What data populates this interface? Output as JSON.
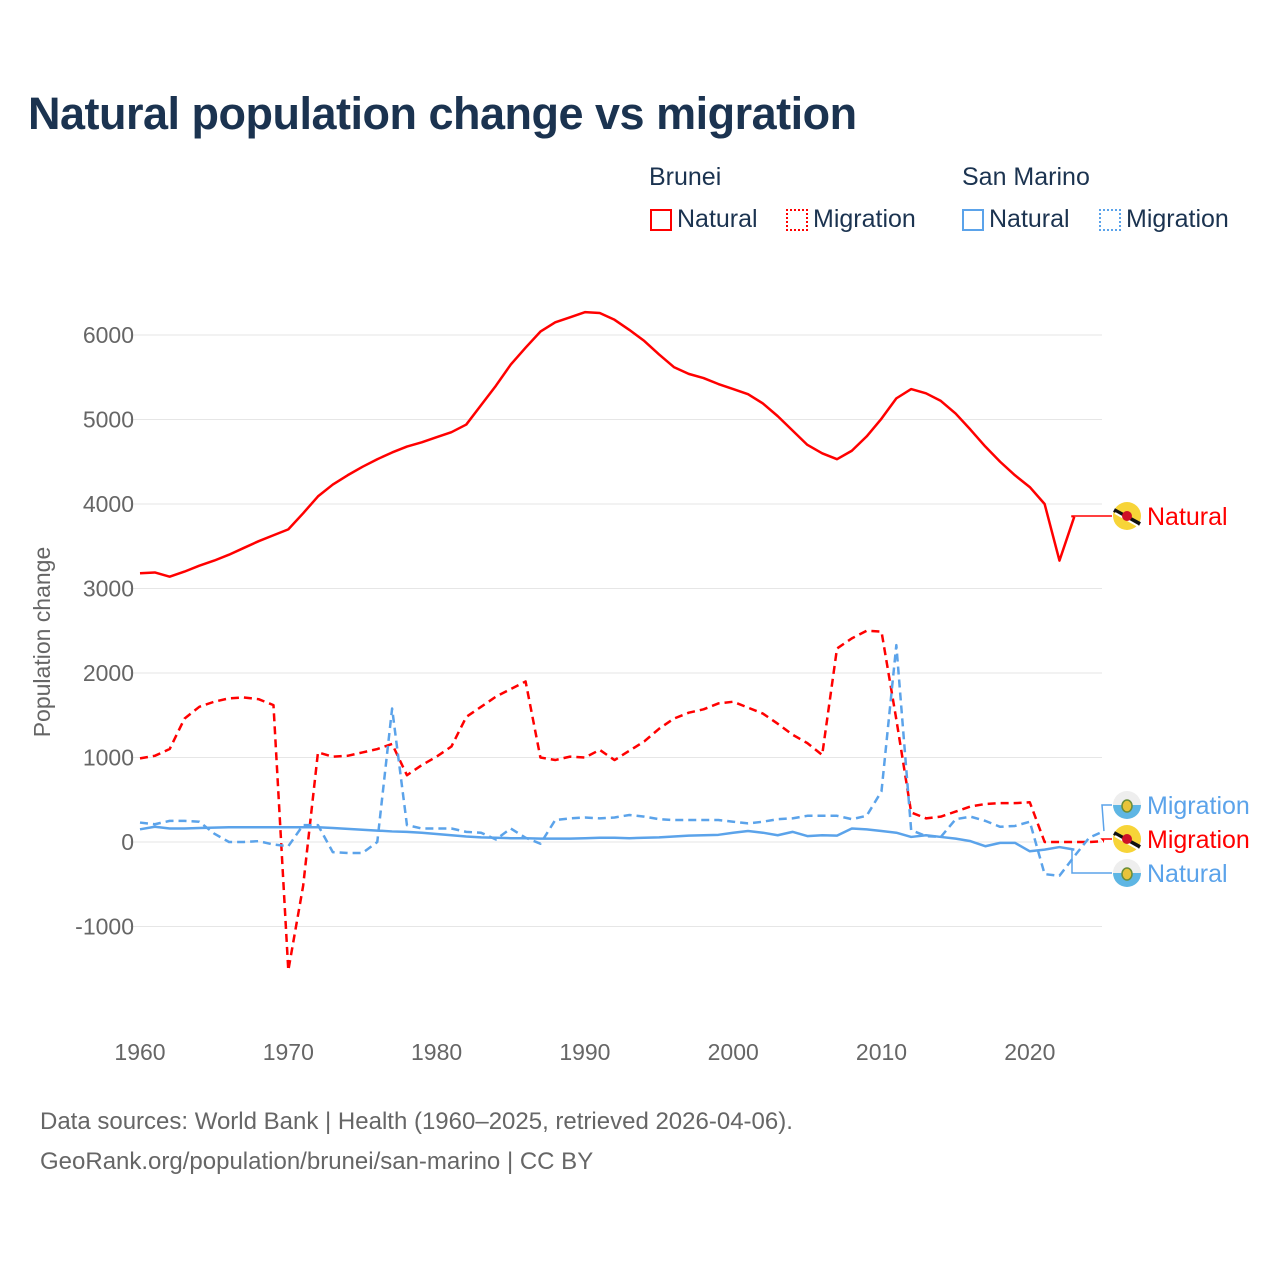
{
  "title": "Natural population change vs migration",
  "legend": {
    "groups": [
      {
        "name": "Brunei",
        "items": [
          "Natural",
          "Migration"
        ]
      },
      {
        "name": "San Marino",
        "items": [
          "Natural",
          "Migration"
        ]
      }
    ]
  },
  "colors": {
    "brunei": "#ff0000",
    "san_marino": "#5ba3ea",
    "grid": "#e6e6e6",
    "axis_text": "#666666"
  },
  "footer": {
    "line1": "Data sources: World Bank | Health (1960–2025, retrieved 2026-04-06).",
    "line2": "GeoRank.org/population/brunei/san-marino | CC BY"
  },
  "end_labels": [
    {
      "country": "Brunei",
      "flag": "brunei-flag-icon",
      "label": "Natural",
      "series": 0
    },
    {
      "country": "San Marino",
      "flag": "san-marino-flag-icon",
      "label": "Migration",
      "series": 3
    },
    {
      "country": "Brunei",
      "flag": "brunei-flag-icon",
      "label": "Migration",
      "series": 1
    },
    {
      "country": "San Marino",
      "flag": "san-marino-flag-icon",
      "label": "Natural",
      "series": 2
    }
  ],
  "chart_data": {
    "type": "line",
    "title": "Natural population change vs migration",
    "xlabel": "",
    "ylabel": "Population change",
    "xlim": [
      1960,
      2025
    ],
    "ylim": [
      -1600,
      6600
    ],
    "xticks": [
      1960,
      1970,
      1980,
      1990,
      2000,
      2010,
      2020
    ],
    "yticks": [
      -1000,
      0,
      1000,
      2000,
      3000,
      4000,
      5000,
      6000
    ],
    "grid": true,
    "legend_position": "top-right",
    "series": [
      {
        "name": "Brunei Natural",
        "country": "Brunei",
        "style": "solid",
        "start": 1960,
        "values": [
          3180,
          3190,
          3140,
          3200,
          3270,
          3330,
          3400,
          3480,
          3560,
          3630,
          3700,
          3890,
          4090,
          4230,
          4340,
          4440,
          4530,
          4610,
          4680,
          4730,
          4790,
          4850,
          4940,
          5170,
          5400,
          5650,
          5850,
          6040,
          6150,
          6210,
          6270,
          6260,
          6180,
          6060,
          5930,
          5770,
          5620,
          5540,
          5490,
          5420,
          5360,
          5300,
          5190,
          5040,
          4870,
          4700,
          4600,
          4530,
          4630,
          4800,
          5010,
          5250,
          5360,
          5310,
          5220,
          5070,
          4880,
          4680,
          4500,
          4340,
          4200,
          4000,
          3330,
          3850
        ]
      },
      {
        "name": "Brunei Migration",
        "country": "Brunei",
        "style": "dashed",
        "start": 1960,
        "values": [
          990,
          1020,
          1100,
          1460,
          1600,
          1660,
          1700,
          1710,
          1690,
          1620,
          -1520,
          -520,
          1060,
          1010,
          1020,
          1060,
          1100,
          1160,
          790,
          910,
          1010,
          1130,
          1480,
          1600,
          1720,
          1810,
          1900,
          1000,
          970,
          1010,
          1000,
          1090,
          970,
          1080,
          1190,
          1340,
          1460,
          1530,
          1570,
          1640,
          1660,
          1590,
          1520,
          1400,
          1270,
          1170,
          1030,
          2290,
          2410,
          2500,
          2490,
          1450,
          350,
          280,
          300,
          360,
          420,
          450,
          460,
          460,
          470,
          0,
          0,
          0,
          0,
          10
        ]
      },
      {
        "name": "San Marino Natural",
        "country": "San Marino",
        "style": "solid",
        "start": 1960,
        "values": [
          150,
          180,
          160,
          160,
          165,
          170,
          175,
          175,
          175,
          175,
          175,
          175,
          175,
          165,
          155,
          145,
          135,
          125,
          120,
          110,
          95,
          80,
          65,
          55,
          50,
          45,
          45,
          40,
          40,
          40,
          45,
          50,
          50,
          45,
          50,
          55,
          65,
          75,
          80,
          85,
          110,
          130,
          110,
          80,
          120,
          70,
          80,
          75,
          160,
          150,
          130,
          110,
          60,
          80,
          60,
          40,
          10,
          -50,
          -10,
          -10,
          -110,
          -90,
          -60,
          -90
        ]
      },
      {
        "name": "San Marino Migration",
        "country": "San Marino",
        "style": "dashed",
        "start": 1960,
        "values": [
          230,
          210,
          250,
          250,
          240,
          100,
          0,
          0,
          10,
          -30,
          -50,
          200,
          200,
          -120,
          -130,
          -130,
          0,
          1580,
          200,
          160,
          160,
          160,
          120,
          110,
          30,
          160,
          50,
          -20,
          260,
          280,
          290,
          280,
          290,
          320,
          300,
          270,
          260,
          260,
          260,
          260,
          240,
          220,
          240,
          270,
          280,
          310,
          310,
          310,
          270,
          310,
          600,
          2330,
          140,
          70,
          60,
          270,
          300,
          250,
          180,
          190,
          240,
          -380,
          -400,
          -170,
          50,
          130
        ]
      }
    ]
  }
}
